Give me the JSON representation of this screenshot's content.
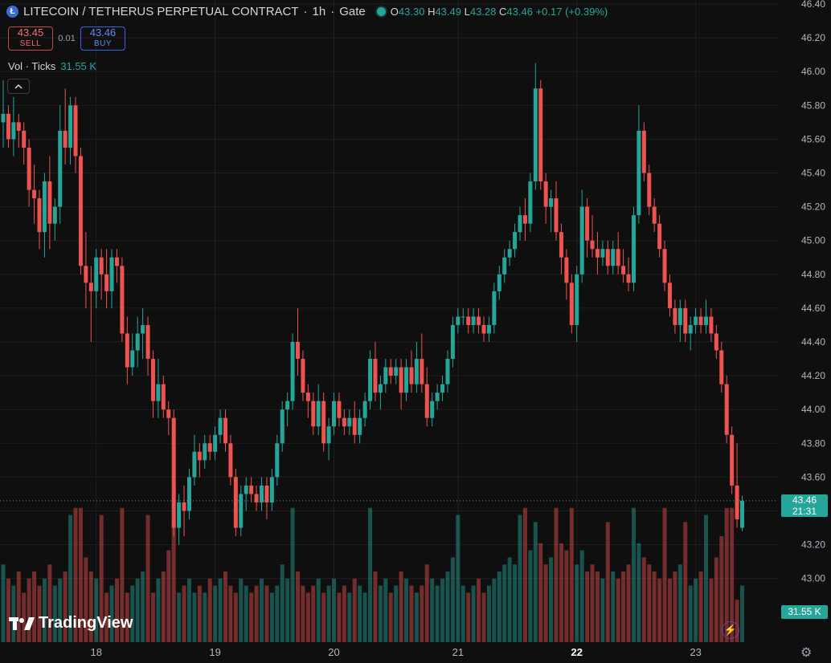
{
  "header": {
    "coin_icon": "litecoin-coin-icon",
    "symbol_title": "LITECOIN / TETHERUS PERPETUAL CONTRACT",
    "sep1": "·",
    "interval": "1h",
    "sep2": "·",
    "exchange": "Gate",
    "ohlc": {
      "o_label": "O",
      "o": "43.30",
      "h_label": "H",
      "h": "43.49",
      "l_label": "L",
      "l": "43.28",
      "c_label": "C",
      "c": "43.46",
      "change": "+0.17 (+0.39%)"
    }
  },
  "trade": {
    "sell_price": "43.45",
    "sell_label": "SELL",
    "spread": "0.01",
    "buy_price": "43.46",
    "buy_label": "BUY"
  },
  "volume_legend": {
    "label": "Vol · Ticks",
    "value": "31.55 K"
  },
  "collapse_icon": "chevron-up-icon",
  "logo_text": "TradingView",
  "price_tag": {
    "price": "43.46",
    "countdown": "21:31"
  },
  "volume_tag": "31.55 K",
  "colors": {
    "up": "#26a69a",
    "down": "#ef5350",
    "background": "#0f0f0f",
    "grid": "#1f1f1f"
  },
  "chart_data": {
    "type": "candlestick",
    "ylim": [
      42.84,
      46.44
    ],
    "y_ticks": [
      "46.40",
      "46.20",
      "46.00",
      "45.80",
      "45.60",
      "45.40",
      "45.20",
      "45.00",
      "44.80",
      "44.60",
      "44.40",
      "44.20",
      "44.00",
      "43.80",
      "43.60",
      "43.40",
      "43.20",
      "43.00"
    ],
    "x_ticks": [
      {
        "label": "18",
        "index": 18
      },
      {
        "label": "19",
        "index": 41
      },
      {
        "label": "20",
        "index": 64
      },
      {
        "label": "21",
        "index": 88
      },
      {
        "label": "22",
        "index": 111,
        "bold": true
      },
      {
        "label": "23",
        "index": 134
      }
    ],
    "ohlc": [
      [
        45.7,
        45.95,
        45.55,
        45.75
      ],
      [
        45.75,
        45.8,
        45.55,
        45.6
      ],
      [
        45.6,
        45.85,
        45.5,
        45.7
      ],
      [
        45.7,
        45.75,
        45.55,
        45.65
      ],
      [
        45.65,
        45.7,
        45.45,
        45.55
      ],
      [
        45.55,
        45.6,
        45.2,
        45.3
      ],
      [
        45.3,
        45.45,
        45.1,
        45.25
      ],
      [
        45.25,
        45.3,
        44.95,
        45.05
      ],
      [
        45.05,
        45.4,
        44.9,
        45.35
      ],
      [
        45.35,
        45.5,
        44.95,
        45.1
      ],
      [
        45.1,
        45.25,
        45.0,
        45.2
      ],
      [
        45.2,
        45.8,
        45.1,
        45.65
      ],
      [
        45.65,
        45.9,
        45.45,
        45.55
      ],
      [
        45.55,
        45.85,
        45.45,
        45.8
      ],
      [
        45.8,
        45.85,
        45.4,
        45.5
      ],
      [
        45.5,
        45.55,
        44.8,
        44.85
      ],
      [
        44.85,
        45.05,
        44.6,
        44.75
      ],
      [
        44.75,
        44.85,
        44.4,
        44.7
      ],
      [
        44.7,
        44.95,
        44.6,
        44.9
      ],
      [
        44.9,
        44.95,
        44.65,
        44.8
      ],
      [
        44.8,
        44.95,
        44.6,
        44.7
      ],
      [
        44.7,
        44.95,
        44.6,
        44.9
      ],
      [
        44.9,
        44.95,
        44.75,
        44.85
      ],
      [
        44.85,
        44.9,
        44.4,
        44.45
      ],
      [
        44.45,
        44.55,
        44.15,
        44.25
      ],
      [
        44.25,
        44.45,
        44.2,
        44.35
      ],
      [
        44.35,
        44.55,
        44.25,
        44.45
      ],
      [
        44.45,
        44.6,
        44.3,
        44.5
      ],
      [
        44.5,
        44.55,
        44.2,
        44.3
      ],
      [
        44.3,
        44.35,
        43.95,
        44.05
      ],
      [
        44.05,
        44.3,
        43.95,
        44.15
      ],
      [
        44.15,
        44.2,
        43.95,
        44.0
      ],
      [
        44.0,
        44.05,
        43.85,
        43.95
      ],
      [
        43.95,
        44.0,
        43.25,
        43.3
      ],
      [
        43.3,
        43.5,
        43.2,
        43.45
      ],
      [
        43.45,
        43.55,
        43.25,
        43.4
      ],
      [
        43.4,
        43.65,
        43.35,
        43.6
      ],
      [
        43.6,
        43.85,
        43.55,
        43.75
      ],
      [
        43.75,
        43.8,
        43.6,
        43.7
      ],
      [
        43.7,
        43.85,
        43.65,
        43.8
      ],
      [
        43.8,
        43.85,
        43.7,
        43.75
      ],
      [
        43.75,
        43.9,
        43.7,
        43.85
      ],
      [
        43.85,
        44.0,
        43.8,
        43.95
      ],
      [
        43.95,
        44.0,
        43.75,
        43.8
      ],
      [
        43.8,
        43.85,
        43.55,
        43.6
      ],
      [
        43.6,
        43.65,
        43.25,
        43.3
      ],
      [
        43.3,
        43.55,
        43.25,
        43.5
      ],
      [
        43.5,
        43.6,
        43.4,
        43.55
      ],
      [
        43.55,
        43.6,
        43.45,
        43.5
      ],
      [
        43.5,
        43.55,
        43.4,
        43.45
      ],
      [
        43.45,
        43.6,
        43.4,
        43.55
      ],
      [
        43.55,
        43.6,
        43.35,
        43.45
      ],
      [
        43.45,
        43.65,
        43.4,
        43.6
      ],
      [
        43.6,
        43.85,
        43.55,
        43.8
      ],
      [
        43.8,
        44.05,
        43.75,
        44.0
      ],
      [
        44.0,
        44.1,
        43.9,
        44.05
      ],
      [
        44.05,
        44.45,
        44.0,
        44.4
      ],
      [
        44.4,
        44.6,
        44.2,
        44.3
      ],
      [
        44.3,
        44.35,
        44.05,
        44.1
      ],
      [
        44.1,
        44.15,
        43.95,
        44.05
      ],
      [
        44.05,
        44.1,
        43.85,
        43.9
      ],
      [
        43.9,
        44.15,
        43.85,
        44.05
      ],
      [
        44.05,
        44.1,
        43.75,
        43.8
      ],
      [
        43.8,
        43.95,
        43.7,
        43.9
      ],
      [
        43.9,
        44.1,
        43.85,
        44.05
      ],
      [
        44.05,
        44.1,
        43.9,
        43.95
      ],
      [
        43.95,
        44.0,
        43.85,
        43.9
      ],
      [
        43.9,
        44.0,
        43.85,
        43.95
      ],
      [
        43.95,
        44.05,
        43.8,
        43.85
      ],
      [
        43.85,
        44.0,
        43.8,
        43.95
      ],
      [
        43.95,
        44.1,
        43.9,
        44.05
      ],
      [
        44.05,
        44.35,
        44.0,
        44.3
      ],
      [
        44.3,
        44.4,
        44.05,
        44.1
      ],
      [
        44.1,
        44.2,
        44.0,
        44.15
      ],
      [
        44.15,
        44.3,
        44.1,
        44.25
      ],
      [
        44.25,
        44.3,
        44.15,
        44.2
      ],
      [
        44.2,
        44.3,
        44.15,
        44.25
      ],
      [
        44.25,
        44.3,
        44.0,
        44.1
      ],
      [
        44.1,
        44.3,
        44.05,
        44.25
      ],
      [
        44.25,
        44.35,
        44.1,
        44.15
      ],
      [
        44.15,
        44.4,
        44.1,
        44.3
      ],
      [
        44.3,
        44.45,
        44.1,
        44.15
      ],
      [
        44.15,
        44.25,
        43.9,
        43.95
      ],
      [
        43.95,
        44.1,
        43.9,
        44.05
      ],
      [
        44.05,
        44.15,
        44.0,
        44.1
      ],
      [
        44.1,
        44.2,
        44.05,
        44.15
      ],
      [
        44.15,
        44.35,
        44.1,
        44.3
      ],
      [
        44.3,
        44.55,
        44.25,
        44.5
      ],
      [
        44.5,
        44.6,
        44.45,
        44.55
      ],
      [
        44.55,
        44.6,
        44.5,
        44.55
      ],
      [
        44.55,
        44.6,
        44.45,
        44.5
      ],
      [
        44.5,
        44.6,
        44.45,
        44.55
      ],
      [
        44.55,
        44.6,
        44.45,
        44.5
      ],
      [
        44.5,
        44.55,
        44.4,
        44.45
      ],
      [
        44.45,
        44.55,
        44.4,
        44.5
      ],
      [
        44.5,
        44.75,
        44.45,
        44.7
      ],
      [
        44.7,
        44.85,
        44.65,
        44.8
      ],
      [
        44.8,
        44.95,
        44.75,
        44.9
      ],
      [
        44.9,
        45.0,
        44.85,
        44.95
      ],
      [
        44.95,
        45.1,
        44.9,
        45.05
      ],
      [
        45.05,
        45.2,
        45.0,
        45.15
      ],
      [
        45.15,
        45.25,
        45.0,
        45.1
      ],
      [
        45.1,
        45.4,
        45.05,
        45.35
      ],
      [
        45.35,
        46.05,
        45.3,
        45.9
      ],
      [
        45.9,
        45.95,
        45.3,
        45.35
      ],
      [
        45.35,
        45.4,
        45.1,
        45.2
      ],
      [
        45.2,
        45.3,
        45.05,
        45.25
      ],
      [
        45.25,
        45.35,
        45.0,
        45.05
      ],
      [
        45.05,
        45.1,
        44.8,
        44.9
      ],
      [
        44.9,
        44.95,
        44.65,
        44.75
      ],
      [
        44.75,
        44.8,
        44.45,
        44.5
      ],
      [
        44.5,
        44.85,
        44.4,
        44.8
      ],
      [
        44.8,
        45.3,
        44.75,
        45.2
      ],
      [
        45.2,
        45.25,
        44.9,
        45.0
      ],
      [
        45.0,
        45.15,
        44.9,
        44.95
      ],
      [
        44.95,
        45.05,
        44.8,
        44.9
      ],
      [
        44.9,
        45.0,
        44.85,
        44.95
      ],
      [
        44.95,
        45.0,
        44.8,
        44.85
      ],
      [
        44.85,
        45.0,
        44.8,
        44.95
      ],
      [
        44.95,
        45.05,
        44.8,
        44.85
      ],
      [
        44.85,
        44.95,
        44.75,
        44.8
      ],
      [
        44.8,
        44.9,
        44.7,
        44.75
      ],
      [
        44.75,
        45.2,
        44.7,
        45.15
      ],
      [
        45.15,
        45.8,
        45.1,
        45.65
      ],
      [
        45.65,
        45.7,
        45.35,
        45.4
      ],
      [
        45.4,
        45.45,
        45.15,
        45.2
      ],
      [
        45.2,
        45.25,
        45.05,
        45.1
      ],
      [
        45.1,
        45.15,
        44.9,
        44.95
      ],
      [
        44.95,
        45.0,
        44.7,
        44.75
      ],
      [
        44.75,
        44.8,
        44.55,
        44.6
      ],
      [
        44.6,
        44.65,
        44.45,
        44.5
      ],
      [
        44.5,
        44.65,
        44.4,
        44.6
      ],
      [
        44.6,
        44.65,
        44.4,
        44.45
      ],
      [
        44.45,
        44.55,
        44.35,
        44.5
      ],
      [
        44.5,
        44.6,
        44.45,
        44.55
      ],
      [
        44.55,
        44.6,
        44.45,
        44.5
      ],
      [
        44.5,
        44.65,
        44.45,
        44.55
      ],
      [
        44.55,
        44.6,
        44.4,
        44.45
      ],
      [
        44.45,
        44.5,
        44.3,
        44.35
      ],
      [
        44.35,
        44.4,
        44.1,
        44.15
      ],
      [
        44.15,
        44.2,
        43.8,
        43.85
      ],
      [
        43.85,
        43.9,
        43.5,
        43.55
      ],
      [
        43.55,
        43.8,
        43.3,
        43.35
      ],
      [
        43.3,
        43.49,
        43.28,
        43.46
      ]
    ],
    "volume": [
      0.55,
      0.45,
      0.4,
      0.5,
      0.35,
      0.45,
      0.5,
      0.4,
      0.45,
      0.55,
      0.4,
      0.45,
      0.5,
      0.55,
      0.7,
      0.95,
      0.6,
      0.5,
      0.45,
      0.4,
      0.35,
      0.4,
      0.45,
      0.5,
      0.35,
      0.4,
      0.45,
      0.5,
      0.4,
      0.35,
      0.45,
      0.5,
      0.65,
      0.4,
      0.35,
      0.4,
      0.45,
      0.35,
      0.4,
      0.35,
      0.45,
      0.4,
      0.45,
      0.5,
      0.4,
      0.35,
      0.45,
      0.4,
      0.35,
      0.4,
      0.45,
      0.4,
      0.35,
      0.4,
      0.55,
      0.45,
      0.6,
      0.5,
      0.4,
      0.35,
      0.4,
      0.45,
      0.35,
      0.4,
      0.45,
      0.35,
      0.4,
      0.35,
      0.45,
      0.4,
      0.35,
      0.4,
      0.5,
      0.4,
      0.45,
      0.35,
      0.4,
      0.5,
      0.45,
      0.4,
      0.35,
      0.4,
      0.55,
      0.45,
      0.4,
      0.45,
      0.5,
      0.6,
      0.45,
      0.4,
      0.35,
      0.4,
      0.45,
      0.35,
      0.4,
      0.45,
      0.5,
      0.55,
      0.6,
      0.55,
      0.6,
      0.5,
      0.65,
      0.85,
      0.7,
      0.55,
      0.6,
      0.55,
      0.7,
      0.65,
      0.6,
      0.55,
      0.65,
      0.5,
      0.55,
      0.5,
      0.45,
      0.55,
      0.5,
      0.45,
      0.5,
      0.55,
      0.85,
      0.7,
      0.6,
      0.55,
      0.5,
      0.45,
      0.4,
      0.45,
      0.5,
      0.55,
      0.45,
      0.4,
      0.45,
      0.5,
      0.4,
      0.45,
      0.6,
      0.75,
      0.85,
      0.95,
      0.3
    ],
    "volume_tall_up": [
      19,
      23,
      56,
      71,
      101,
      110,
      117,
      128,
      136,
      147
    ],
    "volume_tall_down": [
      13,
      14,
      15,
      28,
      33,
      88,
      100,
      107,
      122,
      132,
      140
    ]
  }
}
